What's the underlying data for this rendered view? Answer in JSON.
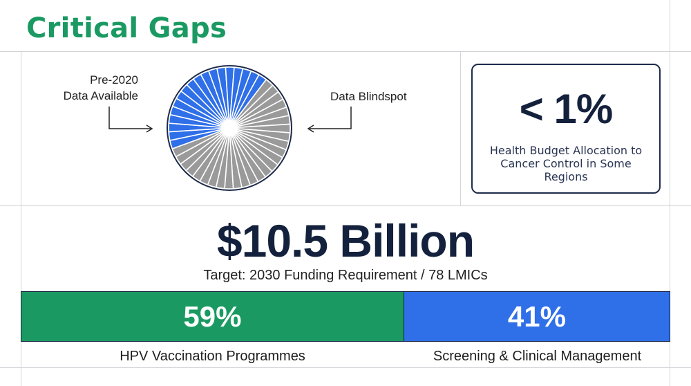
{
  "title": "Critical Gaps",
  "data_coverage": {
    "available_label": "Pre-2020\nData Available",
    "blindspot_label": "Data Blindspot",
    "available_share": 0.4,
    "colors": {
      "available": "#2f6fe8",
      "blindspot": "#9a9a9a"
    }
  },
  "budget_stat": {
    "value": "< 1%",
    "caption": "Health Budget Allocation to Cancer Control in Some Regions"
  },
  "funding": {
    "amount": "$10.5 Billion",
    "target": "Target: 2030 Funding Requirement / 78 LMICs"
  },
  "split": {
    "segments": [
      {
        "percent_label": "59%",
        "value": 59,
        "label": "HPV Vaccination Programmes",
        "color": "#1a9a62"
      },
      {
        "percent_label": "41%",
        "value": 41,
        "label": "Screening & Clinical Management",
        "color": "#2f6fe8"
      }
    ]
  }
}
